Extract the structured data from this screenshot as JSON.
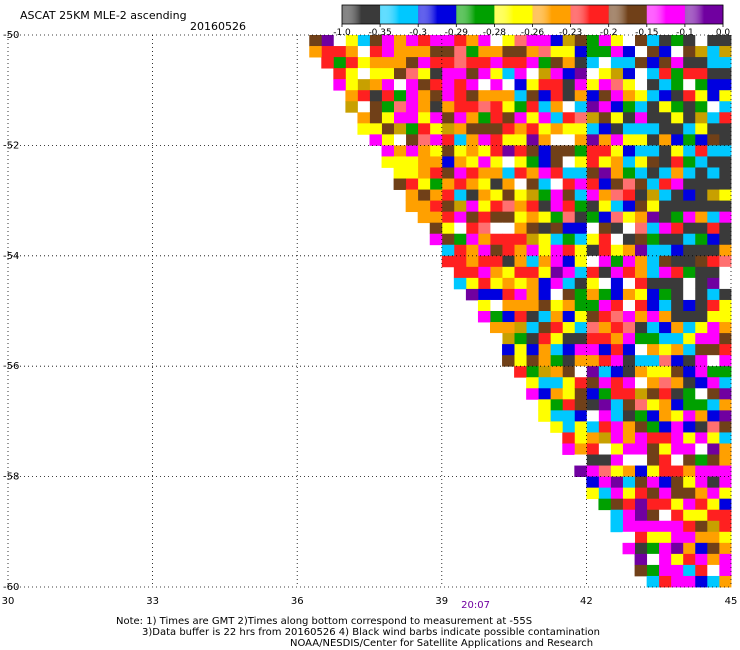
{
  "header": {
    "title": "ASCAT 25KM MLE-2 ascending",
    "date": "20160526"
  },
  "colorbar": {
    "labels": [
      "-1.0",
      "-0.35",
      "-0.3",
      "-0.29",
      "-0.28",
      "-0.26",
      "-0.23",
      "-0.2",
      "-0.15",
      "-0.1",
      "0.0"
    ],
    "colors": [
      "#3a3a3a",
      "#00c8ff",
      "#0000e0",
      "#00a000",
      "#ffff00",
      "#ffa000",
      "#ff2020",
      "#704018",
      "#ff00ff",
      "#7000a0"
    ]
  },
  "notes": {
    "line1": "Note: 1) Times are GMT 2)Times along bottom correspond to measurement at -55S",
    "line2": "3)Data buffer is 22 hrs from 20160526 4) Black wind barbs indicate possible contamination",
    "line3": "NOAA/NESDIS/Center for Satellite Applications and Research"
  },
  "chart_data": {
    "type": "heatmap",
    "title": "ASCAT 25KM MLE-2 ascending",
    "subtitle": "20160526",
    "xlim": [
      30,
      45
    ],
    "ylim": [
      -60,
      -50
    ],
    "x_ticks": [
      "30",
      "33",
      "36",
      "39",
      "42",
      "45"
    ],
    "y_ticks": [
      "-50",
      "-52",
      "-54",
      "-56",
      "-58",
      "-60"
    ],
    "time_labels": [
      {
        "x": 39.7,
        "label": "20:07"
      }
    ],
    "grid": "dotted",
    "swath_edge": {
      "top_lon": 36.0,
      "bottom_lon": 43.2
    },
    "cell_size": {
      "lon": 0.25,
      "lat": 0.2
    },
    "legend": "colorbar at top",
    "palette": {
      "color_scale": [
        "#3a3a3a",
        "#00c8ff",
        "#0000e0",
        "#00a000",
        "#ffff00",
        "#ffa000",
        "#ff2020",
        "#704018",
        "#ff00ff",
        "#7000a0"
      ],
      "extra_colors": [
        "#ffffff",
        "#ff7070",
        "#c8a000"
      ]
    }
  }
}
